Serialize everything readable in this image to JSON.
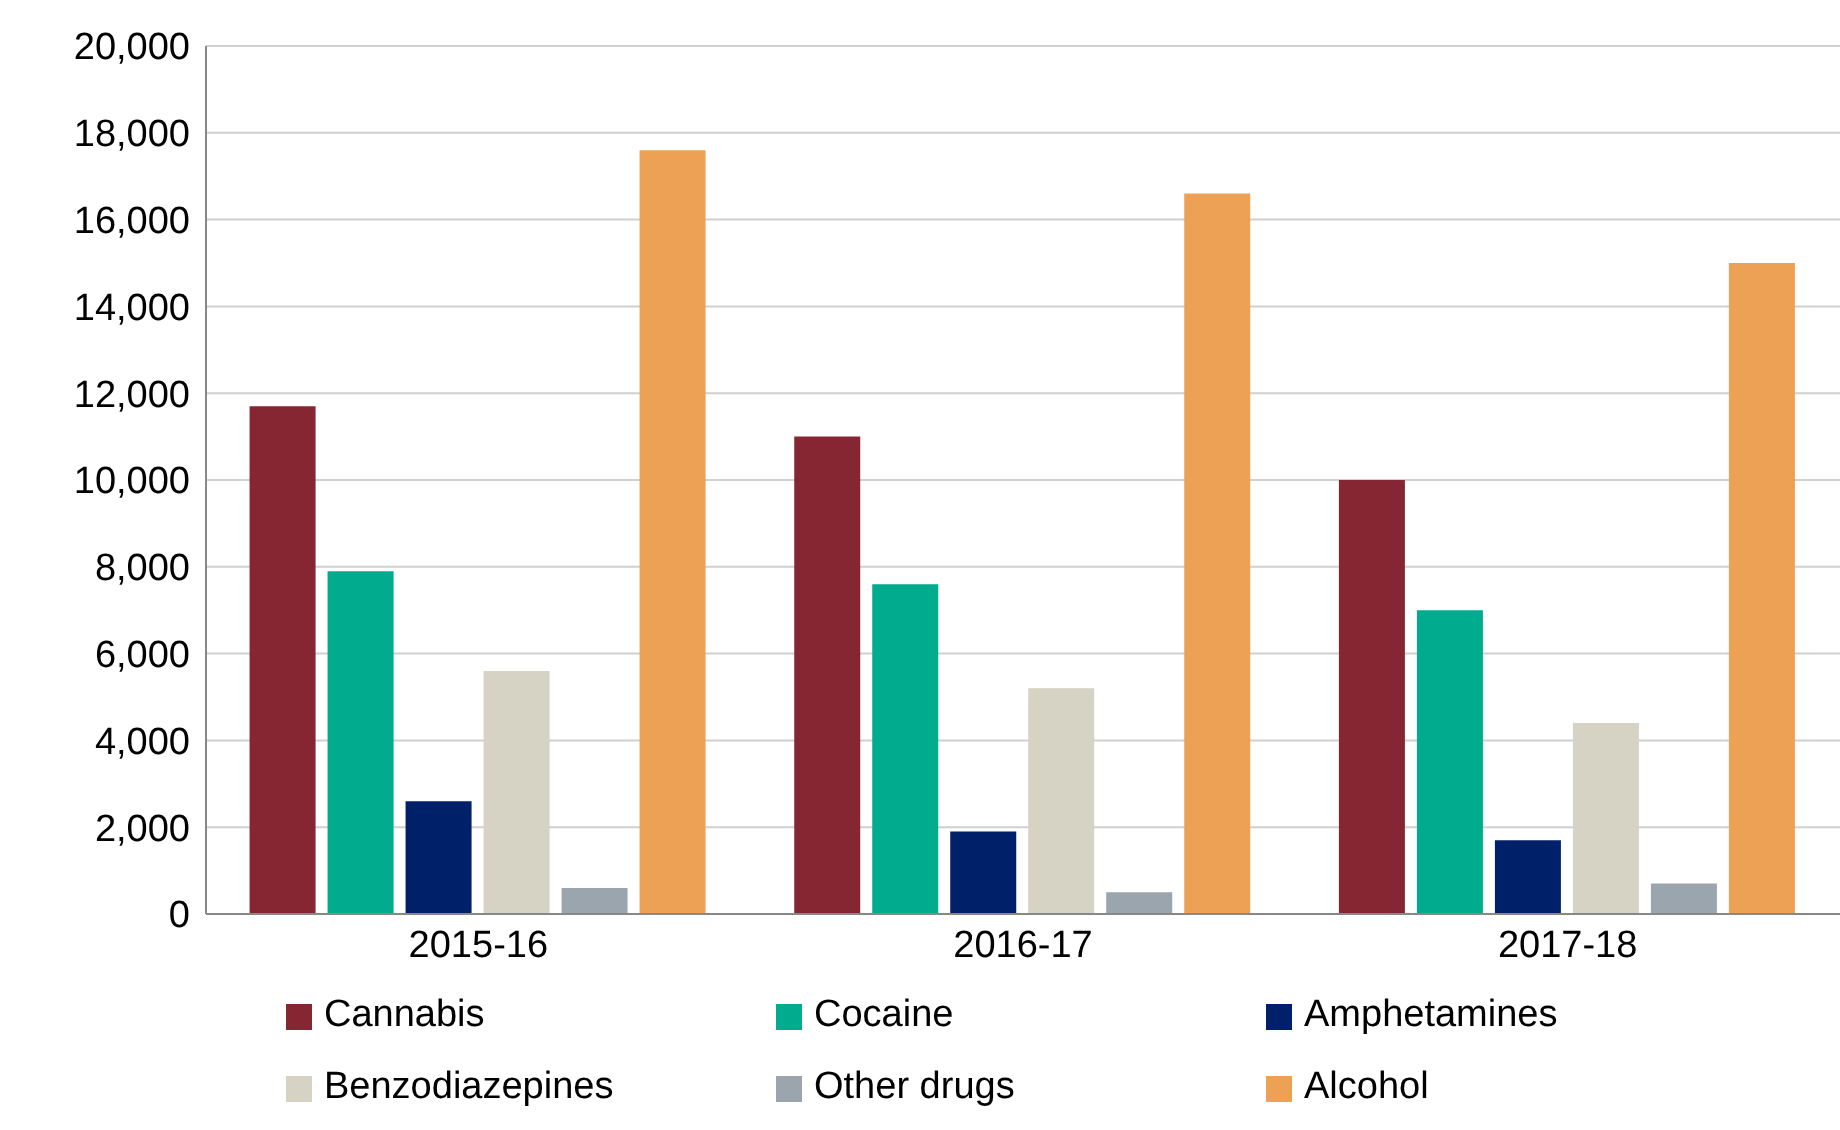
{
  "chart_data": {
    "type": "bar",
    "categories": [
      "2015-16",
      "2016-17",
      "2017-18"
    ],
    "series": [
      {
        "name": "Cannabis",
        "color": "#862633",
        "values": [
          11700,
          11000,
          10000
        ]
      },
      {
        "name": "Cocaine",
        "color": "#00ab8e",
        "values": [
          7900,
          7600,
          7000
        ]
      },
      {
        "name": "Amphetamines",
        "color": "#002169",
        "values": [
          2600,
          1900,
          1700
        ]
      },
      {
        "name": "Benzodiazepines",
        "color": "#d6d2c4",
        "values": [
          5600,
          5200,
          4400
        ]
      },
      {
        "name": "Other drugs",
        "color": "#9aa5ae",
        "values": [
          600,
          500,
          700
        ]
      },
      {
        "name": "Alcohol",
        "color": "#eca154",
        "values": [
          17600,
          16600,
          15000
        ]
      }
    ],
    "ylim": [
      0,
      20000
    ],
    "yticks": [
      0,
      {
        "value": 2000,
        "label": "2,000"
      },
      {
        "value": 4000,
        "label": "4,000"
      },
      {
        "value": 6000,
        "label": "6,000"
      },
      {
        "value": 8000,
        "label": "8,000"
      },
      {
        "value": 10000,
        "label": "10,000"
      },
      {
        "value": 12000,
        "label": "12,000"
      },
      {
        "value": 14000,
        "label": "14,000"
      },
      {
        "value": 16000,
        "label": "16,000"
      },
      {
        "value": 18000,
        "label": "18,000"
      },
      {
        "value": 20000,
        "label": "20,000"
      }
    ],
    "grid": "y",
    "legend": "bottom"
  }
}
